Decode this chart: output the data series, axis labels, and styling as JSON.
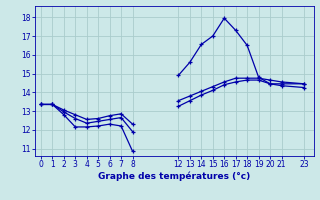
{
  "title": "Graphe des températures (°c)",
  "bg_color": "#cce8e8",
  "grid_color": "#aacccc",
  "line_color": "#0000aa",
  "xlim": [
    -0.5,
    23.8
  ],
  "ylim": [
    10.6,
    18.6
  ],
  "yticks": [
    11,
    12,
    13,
    14,
    15,
    16,
    17,
    18
  ],
  "xticks": [
    0,
    1,
    2,
    3,
    4,
    5,
    6,
    7,
    8,
    12,
    13,
    14,
    15,
    16,
    17,
    18,
    19,
    20,
    21,
    23
  ],
  "curve1_x": [
    0,
    1,
    2,
    3,
    4,
    5,
    6,
    7,
    8,
    12,
    13,
    14,
    15,
    16,
    17,
    18,
    19,
    20,
    21,
    23
  ],
  "curve1_y": [
    13.35,
    13.35,
    12.8,
    12.15,
    12.15,
    12.2,
    12.3,
    12.2,
    10.85,
    14.9,
    15.6,
    16.55,
    17.0,
    17.95,
    17.3,
    16.5,
    14.8,
    14.45,
    14.45,
    14.45
  ],
  "curve2_x": [
    0,
    1,
    2,
    3,
    4,
    5,
    6,
    7,
    8,
    12,
    13,
    14,
    15,
    16,
    17,
    18,
    19,
    20,
    21,
    23
  ],
  "curve2_y": [
    13.35,
    13.35,
    13.05,
    12.8,
    12.55,
    12.6,
    12.75,
    12.85,
    12.3,
    13.55,
    13.8,
    14.05,
    14.3,
    14.55,
    14.75,
    14.75,
    14.75,
    14.65,
    14.55,
    14.45
  ],
  "curve3_x": [
    0,
    1,
    2,
    3,
    4,
    5,
    6,
    7,
    8,
    12,
    13,
    14,
    15,
    16,
    17,
    18,
    19,
    20,
    21,
    23
  ],
  "curve3_y": [
    13.35,
    13.35,
    12.95,
    12.6,
    12.35,
    12.45,
    12.55,
    12.65,
    11.9,
    13.25,
    13.55,
    13.85,
    14.1,
    14.4,
    14.55,
    14.65,
    14.65,
    14.45,
    14.35,
    14.25
  ],
  "xlabel_fontsize": 6.5,
  "tick_fontsize": 5.5,
  "lw": 0.9,
  "marker_size": 2.5
}
